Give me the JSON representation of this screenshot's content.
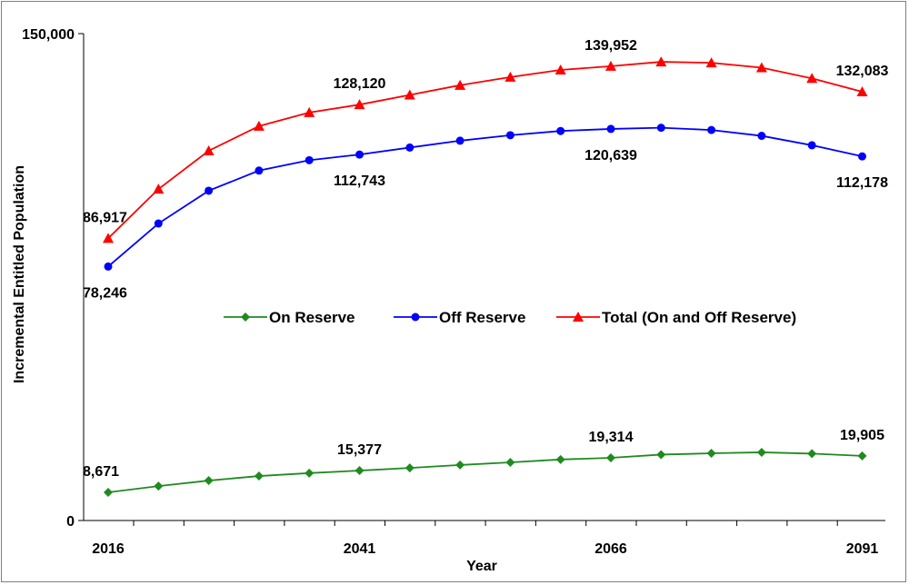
{
  "chart_data": {
    "type": "line",
    "title": "",
    "xlabel": "Year",
    "ylabel": "Incremental Entitled Population",
    "ylim": [
      0,
      150000
    ],
    "y_ticks": [
      "0",
      "150,000"
    ],
    "x_tick_labels": [
      "2016",
      "2041",
      "2066",
      "2091"
    ],
    "x": [
      2016,
      2021,
      2026,
      2031,
      2036,
      2041,
      2046,
      2051,
      2056,
      2061,
      2066,
      2071,
      2076,
      2081,
      2086,
      2091
    ],
    "legend_position": "center",
    "grid": false,
    "series": [
      {
        "name": "On Reserve",
        "color": "#1f8a1f",
        "marker": "diamond",
        "values": [
          8671,
          10600,
          12300,
          13700,
          14600,
          15377,
          16200,
          17100,
          17900,
          18800,
          19314,
          20300,
          20700,
          21000,
          20600,
          19905
        ],
        "labels": [
          {
            "x": 2016,
            "text": "8,671",
            "pos": "above"
          },
          {
            "x": 2041,
            "text": "15,377",
            "pos": "above"
          },
          {
            "x": 2066,
            "text": "19,314",
            "pos": "above"
          },
          {
            "x": 2091,
            "text": "19,905",
            "pos": "above"
          }
        ]
      },
      {
        "name": "Off Reserve",
        "color": "#0000ff",
        "marker": "circle",
        "values": [
          78246,
          91500,
          101600,
          107800,
          111000,
          112743,
          114900,
          117000,
          118700,
          120000,
          120639,
          121000,
          120300,
          118500,
          115600,
          112178
        ],
        "labels": [
          {
            "x": 2016,
            "text": "78,246",
            "pos": "below"
          },
          {
            "x": 2041,
            "text": "112,743",
            "pos": "below"
          },
          {
            "x": 2066,
            "text": "120,639",
            "pos": "below"
          },
          {
            "x": 2091,
            "text": "112,178",
            "pos": "below"
          }
        ]
      },
      {
        "name": "Total (On and Off Reserve)",
        "color": "#ff0000",
        "marker": "triangle",
        "values": [
          86917,
          102100,
          113900,
          121500,
          125700,
          128120,
          131100,
          134100,
          136600,
          138800,
          139952,
          141300,
          141000,
          139500,
          136200,
          132083
        ],
        "labels": [
          {
            "x": 2016,
            "text": "86,917",
            "pos": "above"
          },
          {
            "x": 2041,
            "text": "128,120",
            "pos": "above"
          },
          {
            "x": 2066,
            "text": "139,952",
            "pos": "above"
          },
          {
            "x": 2091,
            "text": "132,083",
            "pos": "above"
          }
        ]
      }
    ]
  }
}
